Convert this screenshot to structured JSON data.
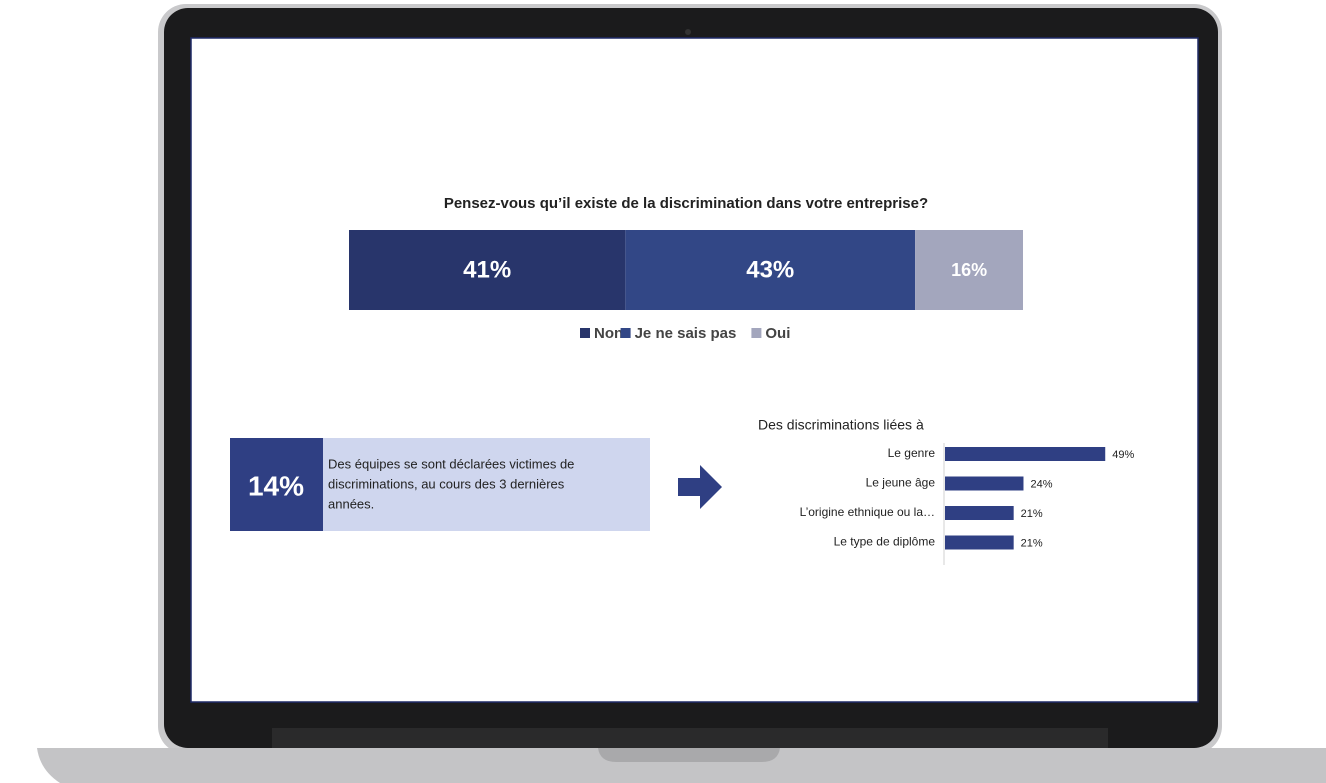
{
  "chart_data": [
    {
      "type": "bar",
      "orientation": "horizontal",
      "stacked": true,
      "title": "Pensez-vous qu’il existe de la discrimination dans votre entreprise?",
      "categories": [
        null
      ],
      "series": [
        {
          "name": "Non",
          "color": "#28356b",
          "values": [
            41
          ],
          "value_labels": [
            "41%"
          ]
        },
        {
          "name": "Je ne sais pas",
          "color": "#324786",
          "values": [
            43
          ],
          "value_labels": [
            "43%"
          ]
        },
        {
          "name": "Oui",
          "color": "#a3a6bd",
          "values": [
            16
          ],
          "value_labels": [
            "16%"
          ]
        }
      ],
      "legend": "bottom"
    },
    {
      "type": "bar",
      "orientation": "horizontal",
      "stacked": false,
      "title": "Des discriminations liées à",
      "categories": [
        "Le genre",
        "Le jeune âge",
        "L’origine ethnique ou la…",
        "Le type de diplôme"
      ],
      "values": [
        49,
        24,
        21,
        21
      ],
      "value_labels": [
        "49%",
        "24%",
        "21%",
        "21%"
      ],
      "color": "#2f3f83"
    }
  ],
  "callout": {
    "figure": "14%",
    "text": [
      "Des équipes se sont déclarées victimes de",
      "discriminations, au cours des 3 dernières",
      "années."
    ]
  }
}
